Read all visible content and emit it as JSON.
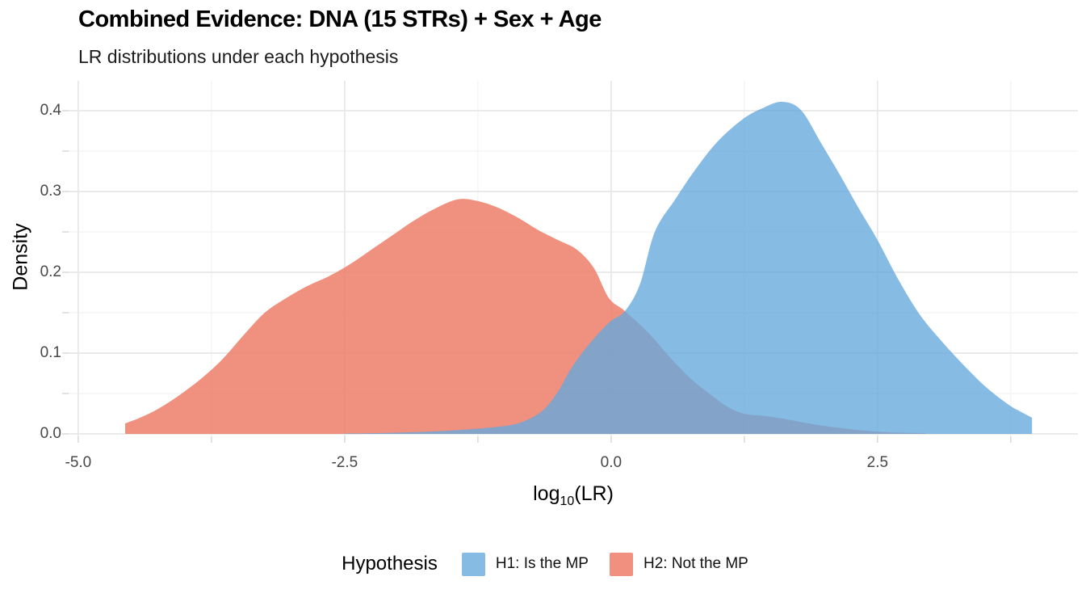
{
  "title": "Combined Evidence: DNA (15 STRs) + Sex + Age",
  "subtitle": "LR distributions under each hypothesis",
  "axes": {
    "x": {
      "title_prefix": "log",
      "title_sub": "10",
      "title_suffix": "(LR)",
      "major_ticks": [
        {
          "value": -5.0,
          "label": "-5.0"
        },
        {
          "value": -2.5,
          "label": "-2.5"
        },
        {
          "value": 0.0,
          "label": "0.0"
        },
        {
          "value": 2.5,
          "label": "2.5"
        }
      ],
      "minor_ticks": [
        -3.75,
        -1.25,
        1.25,
        3.75
      ]
    },
    "y": {
      "title": "Density",
      "major_ticks": [
        {
          "value": 0.0,
          "label": "0.0"
        },
        {
          "value": 0.1,
          "label": "0.1"
        },
        {
          "value": 0.2,
          "label": "0.2"
        },
        {
          "value": 0.3,
          "label": "0.3"
        },
        {
          "value": 0.4,
          "label": "0.4"
        }
      ],
      "minor_ticks": [
        0.05,
        0.15,
        0.25,
        0.35
      ]
    }
  },
  "legend": {
    "title": "Hypothesis",
    "entries": [
      {
        "id": "h1",
        "label": "H1: Is the MP",
        "color": "#86BBE4"
      },
      {
        "id": "h2",
        "label": "H2: Not the MP",
        "color": "#F1907F"
      }
    ]
  },
  "colors": {
    "h1_fill": "#64A8DC",
    "h1_opacity": 0.78,
    "h2_fill": "#ED7C68",
    "h2_opacity": 0.85,
    "grid_major": "#E7E7E7",
    "grid_minor": "#F2F2F2",
    "tick_mark": "#D9D9D9"
  },
  "chart_data": {
    "type": "area",
    "title": "Combined Evidence: DNA (15 STRs) + Sex + Age",
    "subtitle": "LR distributions under each hypothesis",
    "xlabel": "log10(LR)",
    "ylabel": "Density",
    "xlim": [
      -5.09,
      4.38
    ],
    "ylim": [
      0,
      0.437
    ],
    "grid": true,
    "legend_position": "bottom",
    "series": [
      {
        "name": "H2: Not the MP",
        "hypothesis": "H2",
        "points": [
          [
            -4.56,
            0.013
          ],
          [
            -4.42,
            0.02
          ],
          [
            -4.25,
            0.031
          ],
          [
            -4.05,
            0.048
          ],
          [
            -3.85,
            0.068
          ],
          [
            -3.65,
            0.092
          ],
          [
            -3.45,
            0.122
          ],
          [
            -3.25,
            0.15
          ],
          [
            -3.05,
            0.168
          ],
          [
            -2.85,
            0.183
          ],
          [
            -2.65,
            0.195
          ],
          [
            -2.45,
            0.21
          ],
          [
            -2.25,
            0.228
          ],
          [
            -2.05,
            0.246
          ],
          [
            -1.85,
            0.264
          ],
          [
            -1.65,
            0.279
          ],
          [
            -1.45,
            0.29
          ],
          [
            -1.28,
            0.289
          ],
          [
            -1.08,
            0.281
          ],
          [
            -0.88,
            0.268
          ],
          [
            -0.68,
            0.252
          ],
          [
            -0.5,
            0.24
          ],
          [
            -0.32,
            0.228
          ],
          [
            -0.16,
            0.205
          ],
          [
            -0.02,
            0.168
          ],
          [
            0.13,
            0.152
          ],
          [
            0.35,
            0.125
          ],
          [
            0.55,
            0.095
          ],
          [
            0.75,
            0.068
          ],
          [
            0.94,
            0.048
          ],
          [
            1.1,
            0.033
          ],
          [
            1.25,
            0.025
          ],
          [
            1.45,
            0.022
          ],
          [
            1.65,
            0.018
          ],
          [
            1.85,
            0.013
          ],
          [
            2.05,
            0.009
          ],
          [
            2.3,
            0.005
          ],
          [
            2.6,
            0.002
          ],
          [
            2.95,
            0.001
          ]
        ]
      },
      {
        "name": "H1: Is the MP",
        "hypothesis": "H1",
        "points": [
          [
            -2.5,
            0.0005
          ],
          [
            -2.2,
            0.001
          ],
          [
            -1.9,
            0.002
          ],
          [
            -1.6,
            0.0035
          ],
          [
            -1.3,
            0.006
          ],
          [
            -1.05,
            0.009
          ],
          [
            -0.85,
            0.014
          ],
          [
            -0.65,
            0.028
          ],
          [
            -0.5,
            0.052
          ],
          [
            -0.38,
            0.08
          ],
          [
            -0.25,
            0.104
          ],
          [
            -0.12,
            0.124
          ],
          [
            0.0,
            0.14
          ],
          [
            0.13,
            0.152
          ],
          [
            0.27,
            0.185
          ],
          [
            0.41,
            0.25
          ],
          [
            0.6,
            0.29
          ],
          [
            0.79,
            0.327
          ],
          [
            1.0,
            0.362
          ],
          [
            1.24,
            0.39
          ],
          [
            1.42,
            0.403
          ],
          [
            1.6,
            0.411
          ],
          [
            1.78,
            0.401
          ],
          [
            1.97,
            0.36
          ],
          [
            2.15,
            0.32
          ],
          [
            2.32,
            0.28
          ],
          [
            2.5,
            0.24
          ],
          [
            2.7,
            0.19
          ],
          [
            2.9,
            0.147
          ],
          [
            3.1,
            0.115
          ],
          [
            3.28,
            0.089
          ],
          [
            3.5,
            0.06
          ],
          [
            3.72,
            0.037
          ],
          [
            3.85,
            0.027
          ],
          [
            3.95,
            0.02
          ]
        ]
      }
    ]
  }
}
